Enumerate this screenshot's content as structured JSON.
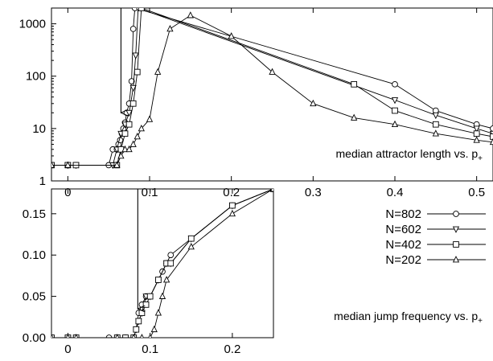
{
  "chart_data": [
    {
      "type": "line",
      "title": "",
      "annotation": {
        "text": "median attractor length vs. p",
        "subscript": "+"
      },
      "xlabel": "",
      "ylabel": "",
      "yscale": "log",
      "xlim": [
        -0.02,
        0.52
      ],
      "ylim": [
        1,
        2000
      ],
      "x_ticks": [
        0,
        0.1,
        0.2,
        0.3,
        0.4,
        0.5
      ],
      "x_tick_labels": [
        "0",
        "0.1",
        "0.2",
        "0.3",
        "0.4",
        "0.5"
      ],
      "y_ticks": [
        1,
        10,
        100,
        1000
      ],
      "y_tick_labels": [
        "1",
        "10",
        "100",
        "1000"
      ],
      "arrow": {
        "x": 0.065,
        "from_y": 2000,
        "to_y": 20
      },
      "series": [
        {
          "name": "N=802",
          "marker": "circle",
          "x": [
            -0.02,
            0,
            0.01,
            0.05,
            0.055,
            0.06,
            0.062,
            0.064,
            0.066,
            0.068,
            0.07,
            0.072,
            0.075,
            0.078,
            0.08,
            0.082,
            0.4,
            0.45,
            0.5,
            0.52
          ],
          "y": [
            2,
            2,
            2,
            2,
            4,
            4,
            5,
            6,
            8,
            10,
            13,
            20,
            30,
            80,
            800,
            2000,
            70,
            22,
            12,
            10
          ]
        },
        {
          "name": "N=602",
          "marker": "triangle-down",
          "x": [
            -0.02,
            0,
            0.01,
            0.055,
            0.06,
            0.065,
            0.07,
            0.075,
            0.08,
            0.083,
            0.086,
            0.4,
            0.45,
            0.5,
            0.52
          ],
          "y": [
            2,
            2,
            2,
            2,
            4,
            8,
            12,
            20,
            60,
            250,
            2000,
            35,
            18,
            10,
            8
          ]
        },
        {
          "name": "N=402",
          "marker": "square",
          "x": [
            -0.02,
            0,
            0.01,
            0.06,
            0.065,
            0.07,
            0.075,
            0.08,
            0.085,
            0.09,
            0.35,
            0.4,
            0.45,
            0.5,
            0.52
          ],
          "y": [
            2,
            2,
            2,
            2,
            4,
            8,
            12,
            30,
            120,
            2000,
            70,
            22,
            12,
            8,
            7
          ]
        },
        {
          "name": "N=202",
          "marker": "triangle-up",
          "x": [
            -0.02,
            0,
            0.06,
            0.065,
            0.07,
            0.075,
            0.08,
            0.085,
            0.09,
            0.1,
            0.11,
            0.125,
            0.15,
            0.2,
            0.25,
            0.3,
            0.35,
            0.4,
            0.45,
            0.5,
            0.52
          ],
          "y": [
            2,
            2,
            2,
            3,
            4,
            4,
            5,
            7,
            10,
            15,
            120,
            800,
            1450,
            580,
            120,
            30,
            16,
            12,
            8,
            6,
            5.5
          ]
        }
      ]
    },
    {
      "type": "line",
      "title": "",
      "annotation": {
        "text": "median jump frequency vs. p",
        "subscript": "+"
      },
      "xlabel": "",
      "ylabel": "",
      "xlim": [
        -0.02,
        0.25
      ],
      "ylim": [
        0,
        0.18
      ],
      "x_ticks": [
        0,
        0.1,
        0.2
      ],
      "x_tick_labels": [
        "0",
        "0.1",
        "0.2"
      ],
      "y_ticks": [
        0,
        0.05,
        0.1,
        0.15
      ],
      "y_tick_labels": [
        "0.00",
        "0.05",
        "0.10",
        "0.15"
      ],
      "arrow": {
        "x": 0.085,
        "from_y": 0.18,
        "to_y": 0.035
      },
      "series": [
        {
          "name": "N=802",
          "marker": "circle",
          "x": [
            -0.02,
            0,
            0.01,
            0.05,
            0.06,
            0.07,
            0.08,
            0.083,
            0.086,
            0.09,
            0.095,
            0.1,
            0.11,
            0.115,
            0.12,
            0.125,
            0.15,
            0.2,
            0.25
          ],
          "y": [
            0,
            0,
            0,
            0,
            0,
            0,
            0,
            0.01,
            0.03,
            0.04,
            0.05,
            0.05,
            0.07,
            0.08,
            0.09,
            0.1,
            0.12,
            0.16,
            0.18
          ]
        },
        {
          "name": "N=602",
          "marker": "triangle-down",
          "x": [
            -0.02,
            0,
            0.01,
            0.06,
            0.07,
            0.08,
            0.083,
            0.086,
            0.09,
            0.095,
            0.1,
            0.11,
            0.12,
            0.125,
            0.15,
            0.2,
            0.25
          ],
          "y": [
            0,
            0,
            0,
            0,
            0,
            0,
            0.01,
            0.02,
            0.03,
            0.05,
            0.05,
            0.07,
            0.09,
            0.09,
            0.12,
            0.16,
            0.18
          ]
        },
        {
          "name": "N=402",
          "marker": "square",
          "x": [
            -0.02,
            0,
            0.01,
            0.06,
            0.07,
            0.08,
            0.083,
            0.086,
            0.09,
            0.095,
            0.1,
            0.11,
            0.12,
            0.125,
            0.15,
            0.2,
            0.25
          ],
          "y": [
            0,
            0,
            0,
            0,
            0,
            0,
            0.01,
            0.02,
            0.03,
            0.04,
            0.05,
            0.07,
            0.09,
            0.09,
            0.12,
            0.16,
            0.18
          ]
        },
        {
          "name": "N=202",
          "marker": "triangle-up",
          "x": [
            -0.02,
            0,
            0.01,
            0.06,
            0.08,
            0.09,
            0.1,
            0.105,
            0.11,
            0.115,
            0.12,
            0.15,
            0.2,
            0.25
          ],
          "y": [
            0,
            0,
            0,
            0,
            0,
            0,
            0,
            0.01,
            0.03,
            0.05,
            0.07,
            0.11,
            0.15,
            0.18
          ]
        }
      ]
    }
  ],
  "legend": {
    "placement": "right",
    "entries": [
      {
        "label": "N=802",
        "marker": "circle"
      },
      {
        "label": "N=602",
        "marker": "triangle-down"
      },
      {
        "label": "N=402",
        "marker": "square"
      },
      {
        "label": "N=202",
        "marker": "triangle-up"
      }
    ]
  },
  "colors": {
    "line": "#000000",
    "background": "#ffffff",
    "marker_fill": "#ffffff"
  }
}
